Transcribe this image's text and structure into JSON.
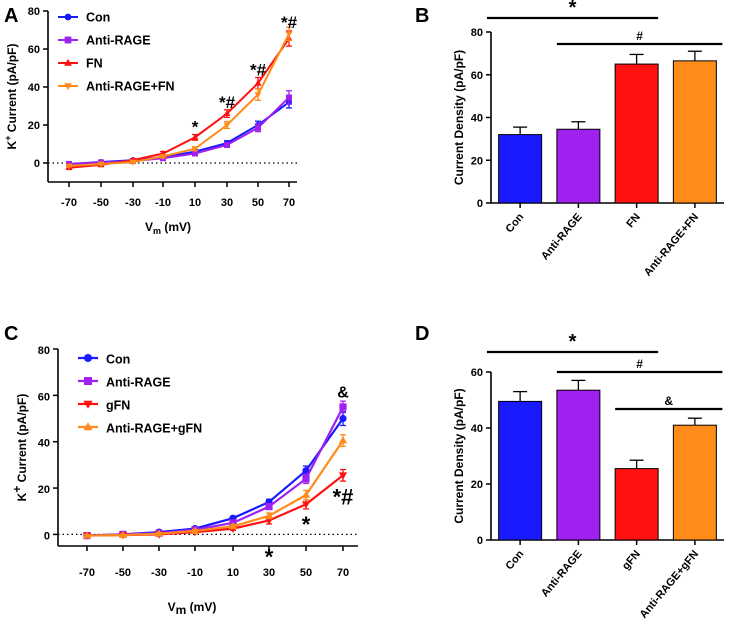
{
  "panel_labels": [
    "A",
    "B",
    "C",
    "D"
  ],
  "chart_data": [
    {
      "panel": "A",
      "type": "line",
      "xlabel_main": "V",
      "xlabel_sub": "m",
      "xlabel_unit": "(mV)",
      "ylabel_main": "K",
      "ylabel_sup": "+",
      "ylabel_rest": " Current (pA/pF)",
      "x": [
        -70,
        -50,
        -30,
        -10,
        10,
        30,
        50,
        70
      ],
      "x_tick_labels": [
        "-70",
        "-50",
        "-30",
        "-10",
        "10",
        "30",
        "50",
        "70"
      ],
      "ylim": [
        -10,
        80
      ],
      "yticks": [
        0,
        20,
        40,
        60,
        80
      ],
      "y_tick_labels": [
        "0",
        "20",
        "40",
        "60",
        "80"
      ],
      "series": [
        {
          "name": "Con",
          "color": "#1a1aff",
          "marker": "circle",
          "values": [
            -0.5,
            0.5,
            1.5,
            3,
            6,
            10.5,
            20,
            32
          ],
          "errors": [
            0.5,
            0.5,
            0.6,
            0.8,
            1,
            1.2,
            2,
            3
          ]
        },
        {
          "name": "Anti-RAGE",
          "color": "#a020f0",
          "marker": "square",
          "values": [
            -0.5,
            0.3,
            1.0,
            2.5,
            5,
            9.5,
            18.5,
            34.5
          ],
          "errors": [
            0.5,
            0.5,
            0.6,
            0.8,
            1,
            1.2,
            2,
            3.5
          ]
        },
        {
          "name": "FN",
          "color": "#ff1111",
          "marker": "triangle-up",
          "values": [
            -2.5,
            -1,
            1.5,
            5,
            13.5,
            26,
            42,
            65.5
          ],
          "errors": [
            0.6,
            0.6,
            0.7,
            1,
            1.5,
            2,
            3,
            4
          ]
        },
        {
          "name": "Anti-RAGE+FN",
          "color": "#ff8c1a",
          "marker": "triangle-down",
          "values": [
            -1.5,
            -0.5,
            0.5,
            3.5,
            7.5,
            20,
            36,
            68
          ],
          "errors": [
            0.5,
            0.5,
            0.6,
            0.8,
            1,
            1.8,
            3,
            3.5
          ]
        }
      ],
      "annotations": [
        {
          "x": 10,
          "y": 16,
          "text": "*"
        },
        {
          "x": 30,
          "y": 29,
          "text": "*#"
        },
        {
          "x": 50,
          "y": 46,
          "text": "*#"
        },
        {
          "x": 70,
          "y": 71,
          "text": "*#"
        }
      ]
    },
    {
      "panel": "B",
      "type": "bar",
      "ylabel": "Current Density (pA/pF)",
      "categories": [
        "Con",
        "Anti-RAGE",
        "FN",
        "Anti-RAGE+FN"
      ],
      "values": [
        32,
        34.5,
        65,
        66.5
      ],
      "errors": [
        3.5,
        3.5,
        4.5,
        4.5
      ],
      "colors": [
        "#1a1aff",
        "#a020f0",
        "#ff1111",
        "#ff8c1a"
      ],
      "ylim": [
        0,
        80
      ],
      "yticks": [
        0,
        20,
        40,
        60,
        80
      ],
      "y_tick_labels": [
        "0",
        "20",
        "40",
        "60",
        "80"
      ],
      "significance": [
        {
          "from": 0,
          "to": 2,
          "text": "*"
        },
        {
          "from": 1,
          "to": 3,
          "text": "#"
        }
      ]
    },
    {
      "panel": "C",
      "type": "line",
      "xlabel_main": "V",
      "xlabel_sub": "m",
      "xlabel_unit": "(mV)",
      "ylabel_main": "K",
      "ylabel_sup": "+",
      "ylabel_rest": " Current (pA/pF)",
      "x": [
        -70,
        -50,
        -30,
        -10,
        10,
        30,
        50,
        70
      ],
      "x_tick_labels": [
        "-70",
        "-50",
        "-30",
        "-10",
        "10",
        "30",
        "50",
        "70"
      ],
      "ylim": [
        -5,
        80
      ],
      "yticks": [
        0,
        20,
        40,
        60,
        80
      ],
      "y_tick_labels": [
        "0",
        "20",
        "40",
        "60",
        "80"
      ],
      "series": [
        {
          "name": "Con",
          "color": "#1a1aff",
          "marker": "circle",
          "values": [
            -0.5,
            0,
            1.0,
            2.5,
            7,
            14,
            27.5,
            50
          ],
          "errors": [
            0.4,
            0.4,
            0.5,
            0.6,
            0.8,
            1.2,
            2,
            3
          ]
        },
        {
          "name": "Anti-RAGE",
          "color": "#a020f0",
          "marker": "square",
          "values": [
            -0.5,
            0,
            0.5,
            2,
            5,
            12,
            24,
            55
          ],
          "errors": [
            0.4,
            0.4,
            0.5,
            0.6,
            0.8,
            1.2,
            2,
            2.5
          ]
        },
        {
          "name": "gFN",
          "color": "#ff1111",
          "marker": "triangle-down",
          "values": [
            -0.5,
            -0.3,
            0,
            1,
            2.5,
            6,
            13,
            25.5
          ],
          "errors": [
            0.4,
            0.4,
            0.5,
            0.5,
            0.7,
            1.5,
            2,
            2.5
          ]
        },
        {
          "name": "Anti-RAGE+gFN",
          "color": "#ff8c1a",
          "marker": "triangle-up",
          "values": [
            -0.5,
            -0.3,
            0.3,
            1.5,
            3.5,
            8,
            17,
            40.5
          ],
          "errors": [
            0.4,
            0.4,
            0.5,
            0.6,
            0.8,
            1.2,
            2,
            2.5
          ]
        }
      ],
      "annotations": [
        {
          "x": 70,
          "y": 59,
          "text": "&",
          "size": 16
        },
        {
          "x": 70,
          "y": 13,
          "text": "*#",
          "size": 22
        },
        {
          "x": 50,
          "y": 1,
          "text": "*",
          "size": 22
        },
        {
          "x": 30,
          "y": -13,
          "text": "*",
          "size": 22
        }
      ]
    },
    {
      "panel": "D",
      "type": "bar",
      "ylabel": "Current Density (pA/pF)",
      "categories": [
        "Con",
        "Anti-RAGE",
        "gFN",
        "Anti-RAGE+gFN"
      ],
      "values": [
        49.5,
        53.5,
        25.5,
        41
      ],
      "errors": [
        3.5,
        3.5,
        3,
        2.5
      ],
      "colors": [
        "#1a1aff",
        "#a020f0",
        "#ff1111",
        "#ff8c1a"
      ],
      "ylim": [
        0,
        60
      ],
      "yticks": [
        0,
        20,
        40,
        60
      ],
      "y_tick_labels": [
        "0",
        "20",
        "40",
        "60"
      ],
      "significance": [
        {
          "from": 0,
          "to": 2,
          "text": "*"
        },
        {
          "from": 1,
          "to": 3,
          "text": "#"
        },
        {
          "from": 2,
          "to": 3,
          "text": "&"
        }
      ]
    }
  ]
}
